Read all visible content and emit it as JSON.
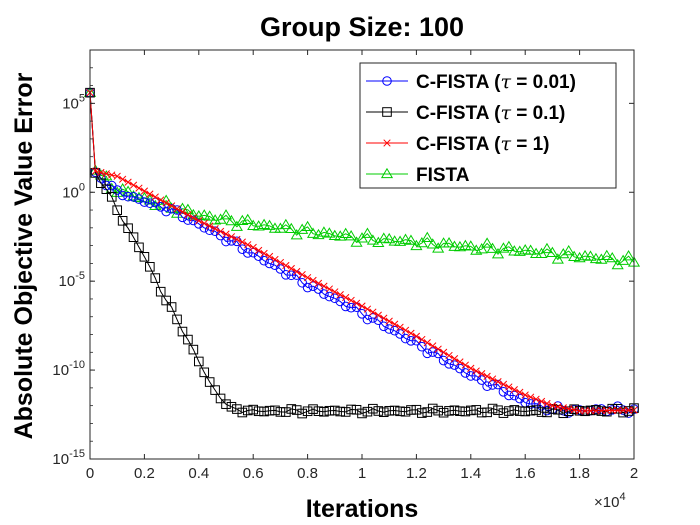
{
  "chart_data": {
    "type": "line",
    "title": "Group Size:  100",
    "xlabel": "Iterations",
    "ylabel": "Absolute Objective Value Error",
    "xscale_multiplier": "×10^4",
    "xlim": [
      0,
      20000
    ],
    "ylim_log10": [
      -15,
      8
    ],
    "yscale": "log",
    "grid": false,
    "legend_position": "top-right",
    "x_ticks": [
      {
        "value": 0,
        "label": "0"
      },
      {
        "value": 2000,
        "label": "0.2"
      },
      {
        "value": 4000,
        "label": "0.4"
      },
      {
        "value": 6000,
        "label": "0.6"
      },
      {
        "value": 8000,
        "label": "0.8"
      },
      {
        "value": 10000,
        "label": "1"
      },
      {
        "value": 12000,
        "label": "1.2"
      },
      {
        "value": 14000,
        "label": "1.4"
      },
      {
        "value": 16000,
        "label": "1.6"
      },
      {
        "value": 18000,
        "label": "1.8"
      },
      {
        "value": 20000,
        "label": "2"
      }
    ],
    "y_ticks": [
      {
        "exp": 5,
        "base": "10",
        "sup": "5"
      },
      {
        "exp": 0,
        "base": "10",
        "sup": "0"
      },
      {
        "exp": -5,
        "base": "10",
        "sup": "-5"
      },
      {
        "exp": -10,
        "base": "10",
        "sup": "-10"
      },
      {
        "exp": -15,
        "base": "10",
        "sup": "-15"
      }
    ],
    "x_multiplier_label": {
      "base": "×10",
      "sup": "4"
    },
    "series": [
      {
        "name": "C-FISTA (τ = 0.01)",
        "legend_prefix": "C-FISTA (",
        "legend_tau": "τ",
        "legend_suffix": " = 0.01)",
        "color": "#0000ff",
        "marker": "circle",
        "points_log10": [
          [
            0,
            5.6
          ],
          [
            150,
            1.2
          ],
          [
            1000,
            0.0
          ],
          [
            3000,
            -1.0
          ],
          [
            5000,
            -2.6
          ],
          [
            8000,
            -5.2
          ],
          [
            10000,
            -6.8
          ],
          [
            12000,
            -8.5
          ],
          [
            14000,
            -10.3
          ],
          [
            15000,
            -11.0
          ],
          [
            16000,
            -11.8
          ],
          [
            17000,
            -12.2
          ],
          [
            18000,
            -12.3
          ],
          [
            19000,
            -12.2
          ],
          [
            20000,
            -12.25
          ]
        ],
        "wiggle": 0.2
      },
      {
        "name": "C-FISTA (τ = 0.1)",
        "legend_prefix": "C-FISTA (",
        "legend_tau": "τ",
        "legend_suffix": " = 0.1)",
        "color": "#000000",
        "marker": "square",
        "points_log10": [
          [
            0,
            5.6
          ],
          [
            150,
            1.2
          ],
          [
            600,
            0.2
          ],
          [
            1000,
            -1.0
          ],
          [
            1500,
            -2.3
          ],
          [
            2000,
            -3.6
          ],
          [
            2500,
            -5.2
          ],
          [
            3000,
            -6.6
          ],
          [
            3500,
            -8.0
          ],
          [
            4000,
            -9.5
          ],
          [
            4500,
            -11.0
          ],
          [
            5200,
            -12.2
          ],
          [
            6000,
            -12.3
          ],
          [
            10000,
            -12.3
          ],
          [
            14000,
            -12.3
          ],
          [
            17000,
            -12.3
          ],
          [
            20000,
            -12.25
          ]
        ],
        "wiggle": 0.15
      },
      {
        "name": "C-FISTA (τ = 1)",
        "legend_prefix": "C-FISTA (",
        "legend_tau": "τ",
        "legend_suffix": " = 1)",
        "color": "#ff0000",
        "marker": "x",
        "points_log10": [
          [
            0,
            5.6
          ],
          [
            150,
            1.2
          ],
          [
            1000,
            0.9
          ],
          [
            4000,
            -1.6
          ],
          [
            6000,
            -3.1
          ],
          [
            8000,
            -4.8
          ],
          [
            10000,
            -6.4
          ],
          [
            12000,
            -8.1
          ],
          [
            14000,
            -9.9
          ],
          [
            16000,
            -11.4
          ],
          [
            17000,
            -12.0
          ],
          [
            18000,
            -12.3
          ],
          [
            20000,
            -12.25
          ]
        ],
        "wiggle": 0.0
      },
      {
        "name": "FISTA",
        "legend_prefix": "FISTA",
        "legend_tau": "",
        "legend_suffix": "",
        "color": "#00cc00",
        "marker": "triangle",
        "points_log10": [
          [
            0,
            5.6
          ],
          [
            150,
            1.3
          ],
          [
            800,
            0.3
          ],
          [
            2000,
            -0.4
          ],
          [
            4000,
            -1.3
          ],
          [
            6000,
            -1.8
          ],
          [
            8000,
            -2.2
          ],
          [
            10000,
            -2.6
          ],
          [
            12000,
            -2.8
          ],
          [
            14000,
            -3.1
          ],
          [
            16000,
            -3.3
          ],
          [
            18000,
            -3.6
          ],
          [
            20000,
            -3.9
          ]
        ],
        "wiggle": 0.3
      }
    ]
  }
}
